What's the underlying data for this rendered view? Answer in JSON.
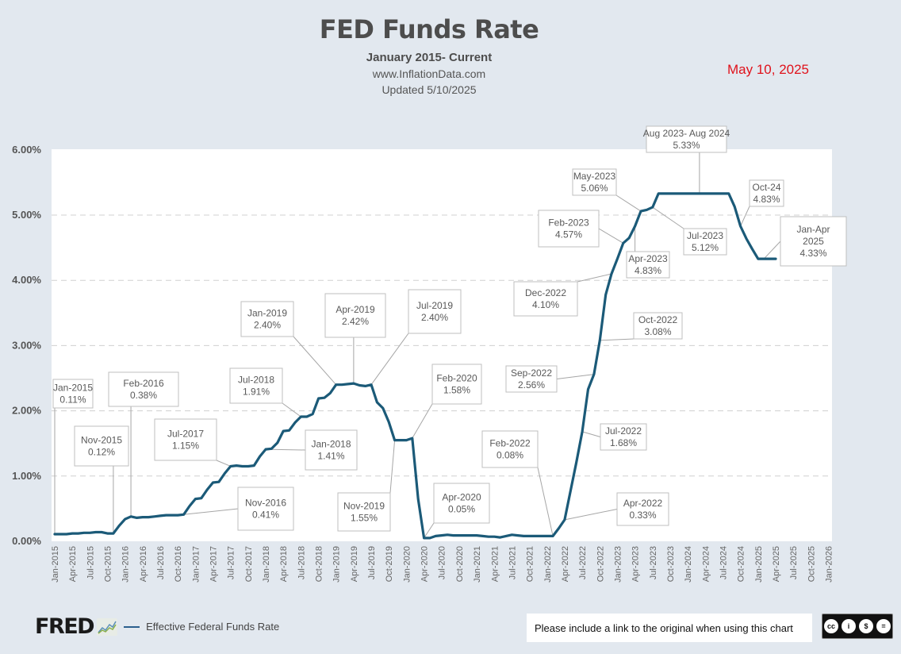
{
  "header": {
    "title": "FED Funds Rate",
    "subtitle": "January 2015- Current",
    "site": "www.InflationData.com",
    "updated": "Updated 5/10/2025",
    "date_stamp": "May 10, 2025"
  },
  "colors": {
    "line": "#1b5a78",
    "date_stamp": "#e0121b",
    "background": "#e2e8ef",
    "plot_bg": "#ffffff"
  },
  "legend": {
    "logo": "FRED",
    "logo_icon": "chart-trend-icon",
    "series_label": "Effective Federal Funds Rate"
  },
  "footer": {
    "notice": "Please include a link to the original when using this chart",
    "license_icon": "creative-commons-by-nc-nd-icon",
    "license_label": "cc BY NC ND"
  },
  "chart_data": {
    "type": "line",
    "title": "FED Funds Rate",
    "subtitle": "January 2015- Current",
    "xlabel": "",
    "ylabel": "",
    "ylim": [
      0,
      6
    ],
    "y_ticks": [
      "0.00%",
      "1.00%",
      "2.00%",
      "3.00%",
      "4.00%",
      "5.00%",
      "6.00%"
    ],
    "x_ticks": [
      "Jan-2015",
      "Apr-2015",
      "Jul-2015",
      "Oct-2015",
      "Jan-2016",
      "Apr-2016",
      "Jul-2016",
      "Oct-2016",
      "Jan-2017",
      "Apr-2017",
      "Jul-2017",
      "Oct-2017",
      "Jan-2018",
      "Apr-2018",
      "Jul-2018",
      "Oct-2018",
      "Jan-2019",
      "Apr-2019",
      "Jul-2019",
      "Oct-2019",
      "Jan-2020",
      "Apr-2020",
      "Jul-2020",
      "Oct-2020",
      "Jan-2021",
      "Apr-2021",
      "Jul-2021",
      "Oct-2021",
      "Jan-2022",
      "Apr-2022",
      "Jul-2022",
      "Oct-2022",
      "Jan-2023",
      "Apr-2023",
      "Jul-2023",
      "Oct-2023",
      "Jan-2024",
      "Apr-2024",
      "Jul-2024",
      "Oct-2024",
      "Jan-2025",
      "Apr-2025",
      "Jul-2025",
      "Oct-2025",
      "Jan-2026"
    ],
    "grid": true,
    "legend_position": "bottom-left",
    "series": [
      {
        "name": "Effective Federal Funds Rate",
        "start": "Jan-2015",
        "frequency": "monthly",
        "values": [
          0.11,
          0.11,
          0.11,
          0.12,
          0.12,
          0.13,
          0.13,
          0.14,
          0.14,
          0.12,
          0.12,
          0.24,
          0.34,
          0.38,
          0.36,
          0.37,
          0.37,
          0.38,
          0.39,
          0.4,
          0.4,
          0.4,
          0.41,
          0.54,
          0.65,
          0.66,
          0.79,
          0.9,
          0.91,
          1.04,
          1.15,
          1.16,
          1.15,
          1.15,
          1.16,
          1.3,
          1.41,
          1.42,
          1.51,
          1.69,
          1.7,
          1.82,
          1.91,
          1.91,
          1.95,
          2.19,
          2.2,
          2.27,
          2.4,
          2.4,
          2.41,
          2.42,
          2.39,
          2.38,
          2.4,
          2.13,
          2.04,
          1.83,
          1.55,
          1.55,
          1.55,
          1.58,
          0.65,
          0.05,
          0.05,
          0.08,
          0.09,
          0.1,
          0.09,
          0.09,
          0.09,
          0.09,
          0.09,
          0.08,
          0.07,
          0.07,
          0.06,
          0.08,
          0.1,
          0.09,
          0.08,
          0.08,
          0.08,
          0.08,
          0.08,
          0.08,
          0.2,
          0.33,
          0.77,
          1.21,
          1.68,
          2.33,
          2.56,
          3.08,
          3.78,
          4.1,
          4.33,
          4.57,
          4.65,
          4.83,
          5.06,
          5.08,
          5.12,
          5.33,
          5.33,
          5.33,
          5.33,
          5.33,
          5.33,
          5.33,
          5.33,
          5.33,
          5.33,
          5.33,
          5.33,
          5.33,
          5.13,
          4.83,
          4.64,
          4.48,
          4.33,
          4.33,
          4.33,
          4.33
        ]
      }
    ],
    "annotations": [
      {
        "label": "Jan-2015",
        "value": "0.11%"
      },
      {
        "label": "Nov-2015",
        "value": "0.12%"
      },
      {
        "label": "Feb-2016",
        "value": "0.38%"
      },
      {
        "label": "Nov-2016",
        "value": "0.41%"
      },
      {
        "label": "Jul-2017",
        "value": "1.15%"
      },
      {
        "label": "Jan-2018",
        "value": "1.41%"
      },
      {
        "label": "Jul-2018",
        "value": "1.91%"
      },
      {
        "label": "Jan-2019",
        "value": "2.40%"
      },
      {
        "label": "Apr-2019",
        "value": "2.42%"
      },
      {
        "label": "Jul-2019",
        "value": "2.40%"
      },
      {
        "label": "Nov-2019",
        "value": "1.55%"
      },
      {
        "label": "Feb-2020",
        "value": "1.58%"
      },
      {
        "label": "Apr-2020",
        "value": "0.05%"
      },
      {
        "label": "Feb-2022",
        "value": "0.08%"
      },
      {
        "label": "Apr-2022",
        "value": "0.33%"
      },
      {
        "label": "Jul-2022",
        "value": "1.68%"
      },
      {
        "label": "Sep-2022",
        "value": "2.56%"
      },
      {
        "label": "Oct-2022",
        "value": "3.08%"
      },
      {
        "label": "Dec-2022",
        "value": "4.10%"
      },
      {
        "label": "Feb-2023",
        "value": "4.57%"
      },
      {
        "label": "Apr-2023",
        "value": "4.83%"
      },
      {
        "label": "May-2023",
        "value": "5.06%"
      },
      {
        "label": "Jul-2023",
        "value": "5.12%"
      },
      {
        "label": "Aug 2023- Aug 2024",
        "value": "5.33%"
      },
      {
        "label": "Oct-24",
        "value": "4.83%"
      },
      {
        "label": "Jan-Apr|2025",
        "value": "4.33%"
      }
    ]
  }
}
